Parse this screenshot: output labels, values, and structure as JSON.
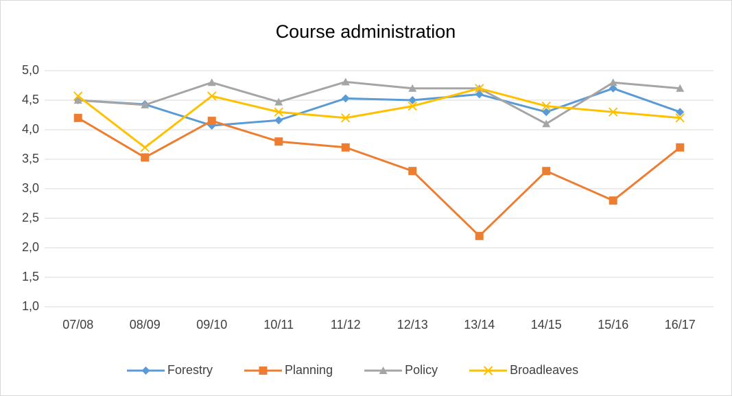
{
  "chart_data": {
    "type": "line",
    "title": "Course administration",
    "categories": [
      "07/08",
      "08/09",
      "09/10",
      "10/11",
      "11/12",
      "12/13",
      "13/14",
      "14/15",
      "15/16",
      "16/17"
    ],
    "series": [
      {
        "name": "Forestry",
        "color": "#5b9bd5",
        "marker": "diamond",
        "values": [
          4.5,
          4.43,
          4.07,
          4.16,
          4.53,
          4.5,
          4.6,
          4.3,
          4.7,
          4.3
        ]
      },
      {
        "name": "Planning",
        "color": "#ed7d31",
        "marker": "square",
        "values": [
          4.2,
          3.53,
          4.15,
          3.8,
          3.7,
          3.3,
          2.2,
          3.3,
          2.8,
          3.7
        ]
      },
      {
        "name": "Policy",
        "color": "#a5a5a5",
        "marker": "triangle",
        "values": [
          4.5,
          4.42,
          4.8,
          4.47,
          4.81,
          4.7,
          4.7,
          4.1,
          4.8,
          4.7
        ]
      },
      {
        "name": "Broadleaves",
        "color": "#ffc000",
        "marker": "x",
        "values": [
          4.57,
          3.7,
          4.57,
          4.3,
          4.2,
          4.4,
          4.7,
          4.4,
          4.3,
          4.2
        ]
      }
    ],
    "ylim": [
      1,
      5
    ],
    "yticks": [
      {
        "value": 1,
        "label": "1,0"
      },
      {
        "value": 1.5,
        "label": "1,5"
      },
      {
        "value": 2,
        "label": "2,0"
      },
      {
        "value": 2.5,
        "label": "2,5"
      },
      {
        "value": 3,
        "label": "3,0"
      },
      {
        "value": 3.5,
        "label": "3,5"
      },
      {
        "value": 4,
        "label": "4,0"
      },
      {
        "value": 4.5,
        "label": "4,5"
      },
      {
        "value": 5,
        "label": "5,0"
      }
    ],
    "grid": true,
    "legend": "bottom"
  }
}
